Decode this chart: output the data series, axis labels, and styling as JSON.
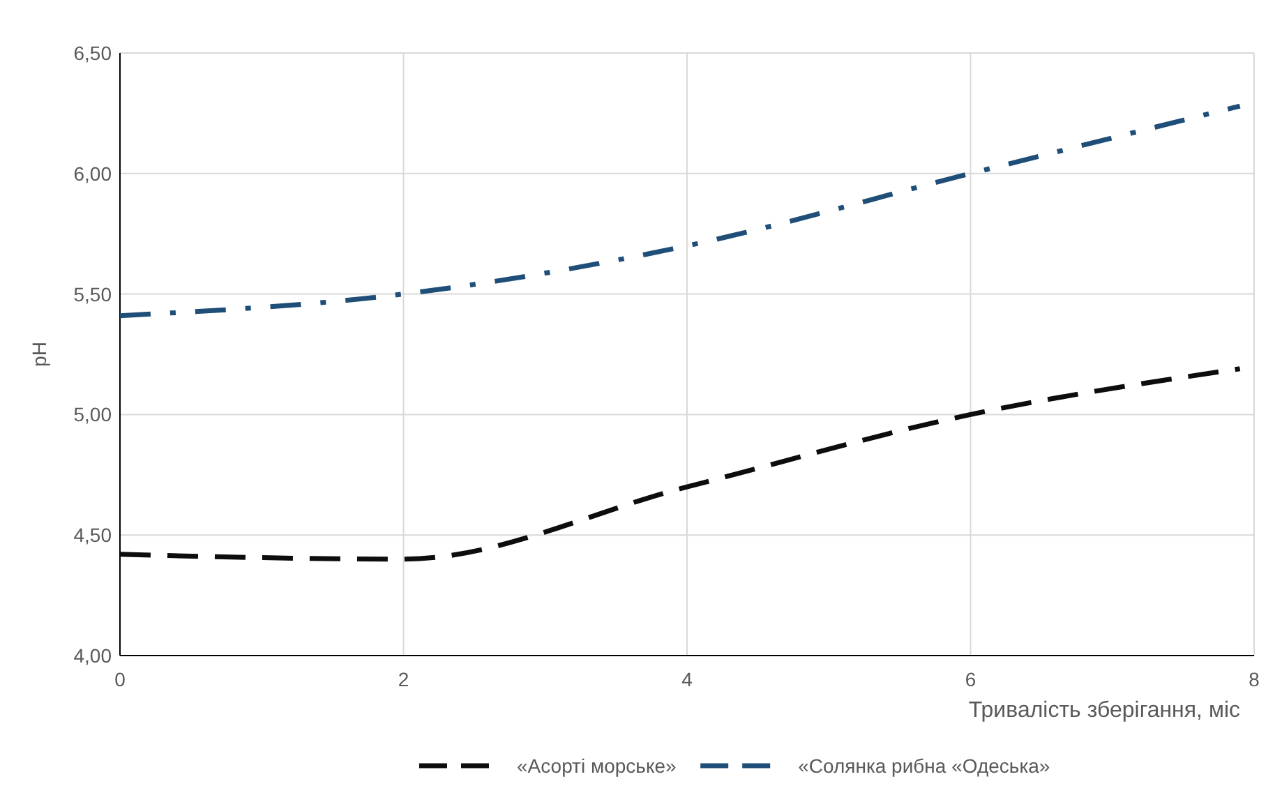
{
  "chart_data": {
    "type": "line",
    "xlabel": "Тривалість зберігання, міс",
    "ylabel": "pH",
    "xlim": [
      0,
      8
    ],
    "xticks": [
      0,
      2,
      4,
      6,
      8
    ],
    "ylim": [
      4,
      6.5
    ],
    "yticks": [
      {
        "value": 4,
        "label": "4,00"
      },
      {
        "value": 4.5,
        "label": "4,50"
      },
      {
        "value": 5,
        "label": "5,00"
      },
      {
        "value": 5.5,
        "label": "5,50"
      },
      {
        "value": 6,
        "label": "6,00"
      },
      {
        "value": 6.5,
        "label": "6,50"
      }
    ],
    "grid": true,
    "legend": "bottom",
    "marker": "none",
    "series": [
      {
        "name": "«Асорті морське»",
        "color": "#0d0d0d",
        "line_style": "dashed",
        "x": [
          0,
          2,
          4,
          6,
          7.9
        ],
        "values": [
          4.42,
          4.4,
          4.7,
          5.0,
          5.19
        ]
      },
      {
        "name": "«Солянка рибна «Одеська»",
        "color": "#1f4e79",
        "line_style": "dashdot",
        "x": [
          0,
          2,
          4,
          6,
          7.9
        ],
        "values": [
          5.41,
          5.5,
          5.7,
          6.0,
          6.28
        ]
      }
    ]
  }
}
